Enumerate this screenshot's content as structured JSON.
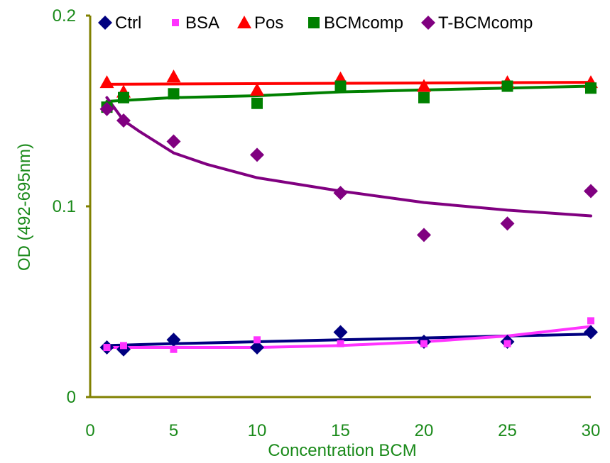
{
  "chart_data": {
    "type": "scatter",
    "title": "",
    "xlabel": "Concentration BCM",
    "ylabel": "OD (492-695nm)",
    "xlim": [
      0,
      30
    ],
    "ylim": [
      0,
      0.2
    ],
    "x_ticks": [
      "0",
      "5",
      "10",
      "15",
      "20",
      "25",
      "30"
    ],
    "y_ticks": [
      "0",
      "0.1",
      "0.2"
    ],
    "grid": false,
    "legend_position": "top",
    "axis_color": "#808000",
    "label_color": "#1a8a1a",
    "series": [
      {
        "name": "Ctrl",
        "marker": "diamond",
        "color": "#000080",
        "x": [
          1,
          2,
          5,
          10,
          15,
          20,
          25,
          30
        ],
        "y": [
          0.026,
          0.025,
          0.03,
          0.026,
          0.034,
          0.029,
          0.029,
          0.034
        ],
        "trend_x": [
          1,
          5,
          10,
          15,
          20,
          25,
          30
        ],
        "trend_y": [
          0.027,
          0.028,
          0.029,
          0.03,
          0.031,
          0.032,
          0.033
        ]
      },
      {
        "name": "BSA",
        "marker": "square-small",
        "color": "#ff33ff",
        "x": [
          1,
          2,
          5,
          10,
          15,
          20,
          25,
          30
        ],
        "y": [
          0.026,
          0.027,
          0.025,
          0.03,
          0.028,
          0.028,
          0.028,
          0.04
        ],
        "trend_x": [
          1,
          5,
          10,
          15,
          20,
          25,
          30
        ],
        "trend_y": [
          0.026,
          0.026,
          0.026,
          0.027,
          0.029,
          0.032,
          0.037
        ]
      },
      {
        "name": "Pos",
        "marker": "triangle",
        "color": "#ff0000",
        "x": [
          1,
          2,
          5,
          10,
          15,
          20,
          25,
          30
        ],
        "y": [
          0.165,
          0.16,
          0.168,
          0.161,
          0.167,
          0.163,
          0.165,
          0.165
        ],
        "trend_x": [
          1,
          30
        ],
        "trend_y": [
          0.164,
          0.165
        ]
      },
      {
        "name": "BCMcomp",
        "marker": "square",
        "color": "#008000",
        "x": [
          1,
          2,
          5,
          10,
          15,
          20,
          25,
          30
        ],
        "y": [
          0.152,
          0.157,
          0.159,
          0.154,
          0.163,
          0.157,
          0.163,
          0.162
        ],
        "trend_x": [
          1,
          5,
          10,
          15,
          20,
          25,
          30
        ],
        "trend_y": [
          0.155,
          0.157,
          0.158,
          0.16,
          0.161,
          0.162,
          0.163
        ]
      },
      {
        "name": "T-BCMcomp",
        "marker": "diamond",
        "color": "#800080",
        "x": [
          1,
          2,
          5,
          10,
          15,
          20,
          25,
          30
        ],
        "y": [
          0.151,
          0.145,
          0.134,
          0.127,
          0.107,
          0.085,
          0.091,
          0.108
        ],
        "trend_x": [
          1,
          2,
          3,
          5,
          7,
          10,
          15,
          20,
          25,
          30
        ],
        "trend_y": [
          0.157,
          0.145,
          0.139,
          0.128,
          0.122,
          0.115,
          0.108,
          0.102,
          0.098,
          0.095
        ]
      }
    ]
  }
}
